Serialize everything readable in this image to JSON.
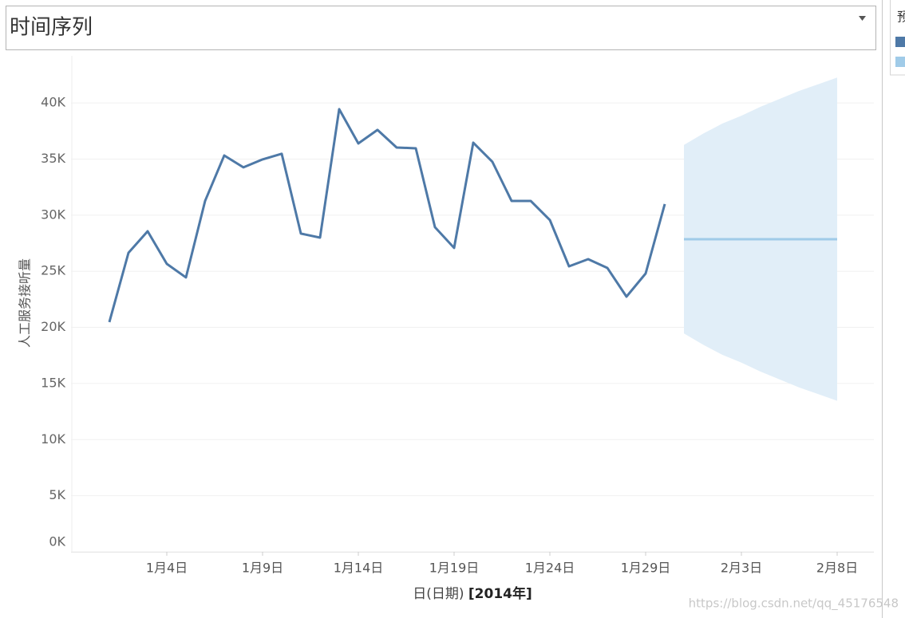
{
  "header": {
    "title": "时间序列"
  },
  "legend": {
    "title": "预"
  },
  "watermark": "https://blog.csdn.net/qq_45176548",
  "chart_data": {
    "type": "line",
    "xlabel": "日(日期) ",
    "xlabel_year": "[2014年]",
    "ylabel": "人工服务接听量",
    "xlim": [
      "2013-12-30",
      "2014-02-09"
    ],
    "xticks": [
      {
        "value": "2014-01-04",
        "label": "1月4日"
      },
      {
        "value": "2014-01-09",
        "label": "1月9日"
      },
      {
        "value": "2014-01-14",
        "label": "1月14日"
      },
      {
        "value": "2014-01-19",
        "label": "1月19日"
      },
      {
        "value": "2014-01-24",
        "label": "1月24日"
      },
      {
        "value": "2014-01-29",
        "label": "1月29日"
      },
      {
        "value": "2014-02-03",
        "label": "2月3日"
      },
      {
        "value": "2014-02-08",
        "label": "2月8日"
      }
    ],
    "ylim": [
      0,
      44200
    ],
    "yticks": [
      {
        "value": 0,
        "label": "0K"
      },
      {
        "value": 5000,
        "label": "5K"
      },
      {
        "value": 10000,
        "label": "10K"
      },
      {
        "value": 15000,
        "label": "15K"
      },
      {
        "value": 20000,
        "label": "20K"
      },
      {
        "value": 25000,
        "label": "25K"
      },
      {
        "value": 30000,
        "label": "30K"
      },
      {
        "value": 35000,
        "label": "35K"
      },
      {
        "value": 40000,
        "label": "40K"
      }
    ],
    "grid": true,
    "series": [
      {
        "color": "#4e79a7",
        "x": [
          "2014-01-01",
          "2014-01-02",
          "2014-01-03",
          "2014-01-04",
          "2014-01-05",
          "2014-01-06",
          "2014-01-07",
          "2014-01-08",
          "2014-01-09",
          "2014-01-10",
          "2014-01-11",
          "2014-01-12",
          "2014-01-13",
          "2014-01-14",
          "2014-01-15",
          "2014-01-16",
          "2014-01-17",
          "2014-01-18",
          "2014-01-19",
          "2014-01-20",
          "2014-01-21",
          "2014-01-22",
          "2014-01-23",
          "2014-01-24",
          "2014-01-25",
          "2014-01-26",
          "2014-01-27",
          "2014-01-28",
          "2014-01-29",
          "2014-01-30"
        ],
        "values": [
          20470,
          26650,
          28570,
          25660,
          24450,
          31270,
          35320,
          34260,
          34970,
          35470,
          28360,
          28000,
          39450,
          36390,
          37600,
          36030,
          35960,
          28930,
          27080,
          36460,
          34750,
          31270,
          31270,
          29570,
          25440,
          26080,
          25300,
          22740,
          24800,
          30990
        ]
      },
      {
        "color": "#a0cbe8",
        "band_color": "#e1eef8",
        "x": [
          "2014-01-31",
          "2014-02-01",
          "2014-02-02",
          "2014-02-03",
          "2014-02-04",
          "2014-02-05",
          "2014-02-06",
          "2014-02-07",
          "2014-02-08"
        ],
        "values": [
          27860,
          27860,
          27860,
          27860,
          27860,
          27860,
          27860,
          27860,
          27860
        ],
        "upper": [
          36260,
          37260,
          38160,
          38860,
          39660,
          40360,
          41060,
          41660,
          42260
        ],
        "lower": [
          19460,
          18460,
          17560,
          16860,
          16060,
          15360,
          14660,
          14060,
          13460
        ]
      }
    ]
  }
}
